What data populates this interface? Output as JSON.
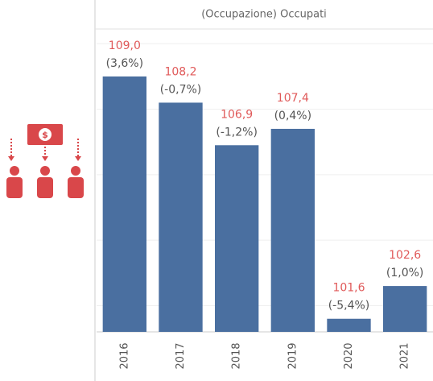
{
  "chart_data": {
    "type": "bar",
    "title": "(Occupazione) Occupati",
    "categories": [
      "2016",
      "2017",
      "2018",
      "2019",
      "2020",
      "2021"
    ],
    "values": [
      109.0,
      108.2,
      106.9,
      107.4,
      101.6,
      102.6
    ],
    "value_labels": [
      "109,0",
      "108,2",
      "106,9",
      "107,4",
      "101,6",
      "102,6"
    ],
    "changes": [
      3.6,
      -0.7,
      -1.2,
      0.4,
      -5.4,
      1.0
    ],
    "change_labels": [
      "(3,6%)",
      "(-0,7%)",
      "(-1,2%)",
      "(0,4%)",
      "(-5,4%)",
      "(1,0%)"
    ],
    "color": "#4a6fa0",
    "ylim": [
      101.2,
      110.4
    ],
    "yticks": [
      102,
      104,
      106,
      108,
      110
    ],
    "grid": true
  }
}
